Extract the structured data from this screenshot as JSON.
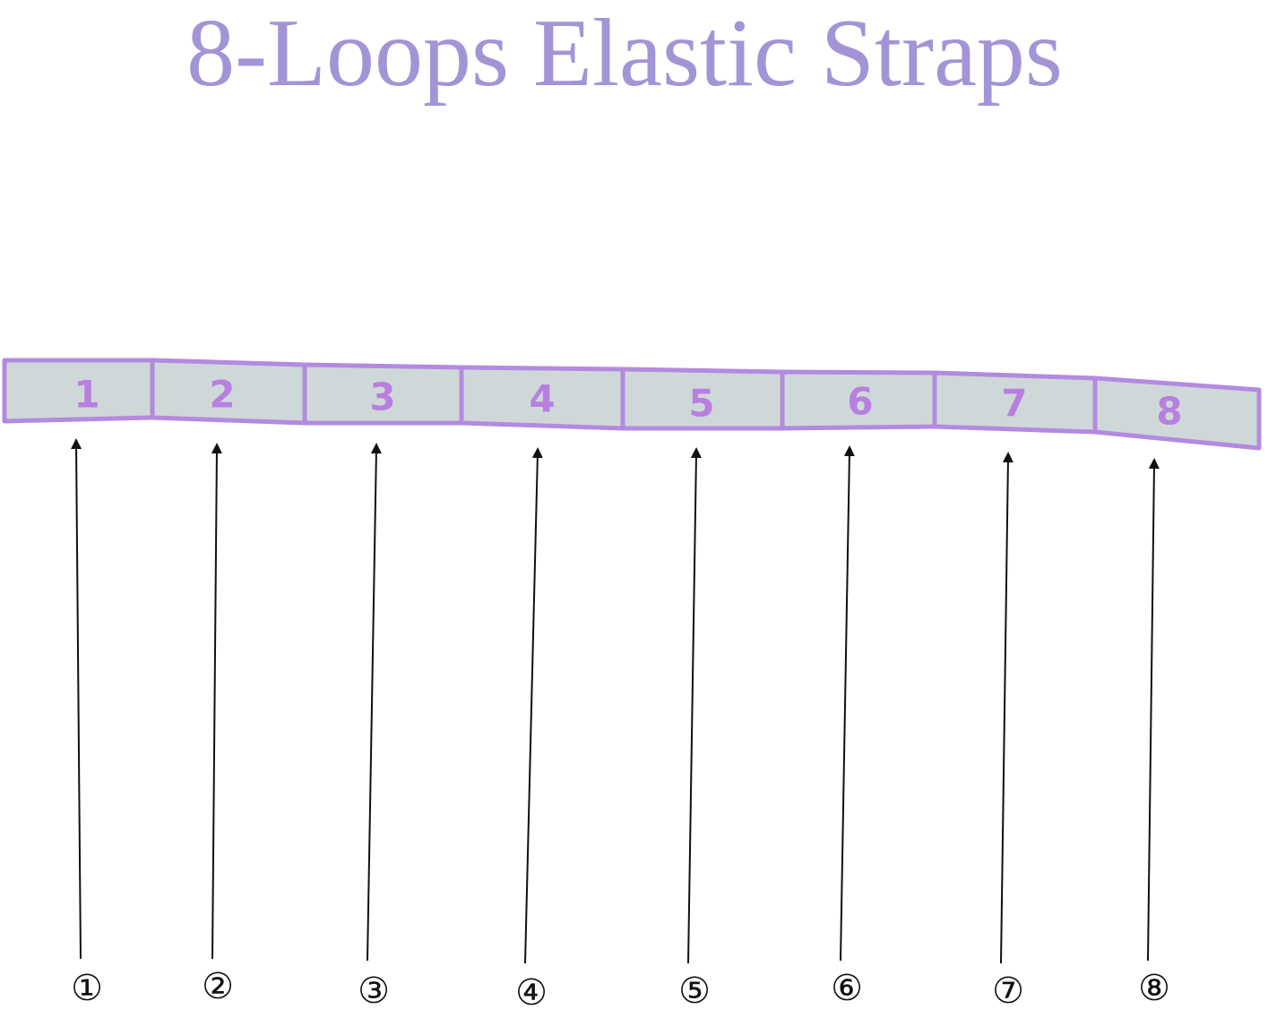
{
  "title": "8-Loops Elastic Straps",
  "loops": [
    "1",
    "2",
    "3",
    "4",
    "5",
    "6",
    "7",
    "8"
  ],
  "markers": [
    "①",
    "②",
    "③",
    "④",
    "⑤",
    "⑥",
    "⑦",
    "⑧"
  ]
}
